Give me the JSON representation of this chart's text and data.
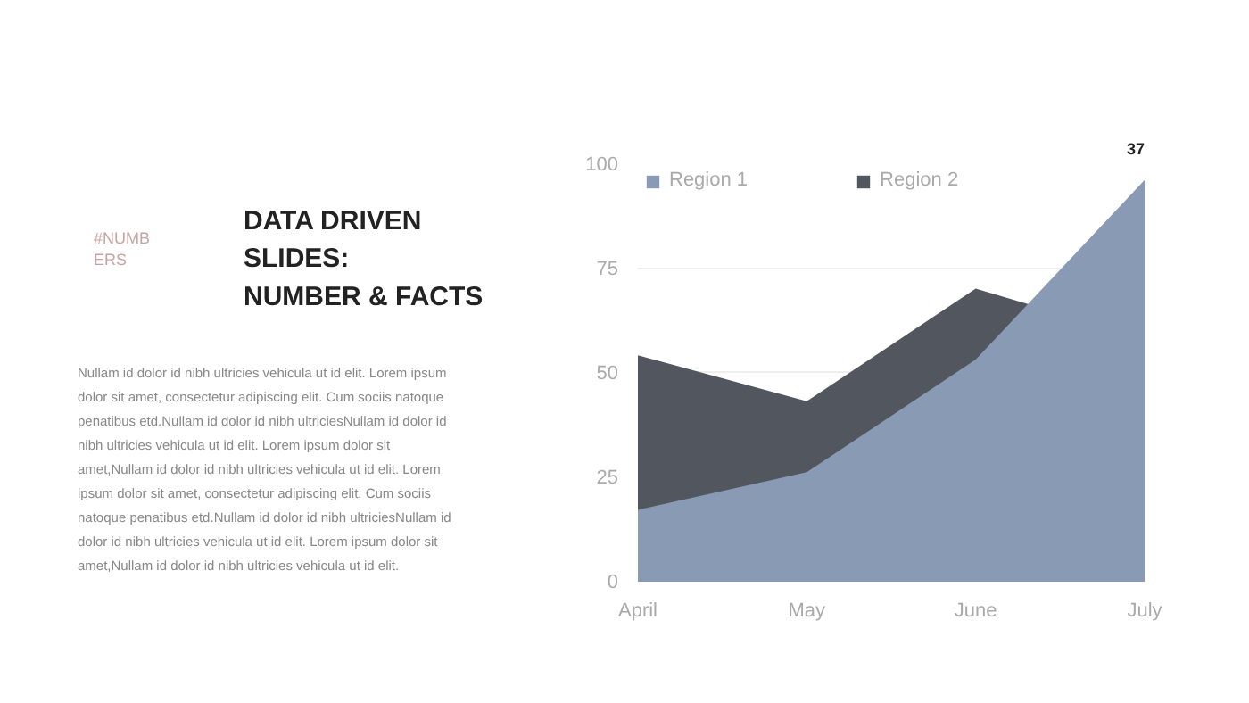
{
  "chart_data": {
    "type": "area",
    "title": "DATA DRIVEN\nSLIDES:\nNUMBER & FACTS",
    "categories": [
      "April",
      "May",
      "June",
      "July"
    ],
    "series": [
      {
        "name": "Region 2",
        "color": "#52565e",
        "values": [
          54,
          43,
          70,
          58
        ]
      },
      {
        "name": "Region 1",
        "color": "#899bb4",
        "values": [
          17,
          26,
          53,
          96
        ]
      }
    ],
    "ylim": [
      0,
      100
    ],
    "yticks": [
      0,
      25,
      50,
      75,
      100
    ],
    "grid": "y",
    "legend": "top left",
    "annotations": [
      "#NUMBERS",
      "Nullam id dolor id nibh ultricies vehicula ut id elit. Lorem ipsum dolor sit amet, consectetur adipiscing elit. Cum sociis natoque penatibus etd.Nullam id dolor id nibh ultriciesNullam id dolor id nibh ultricies vehicula ut id elit. Lorem ipsum dolor sit amet,Nullam id dolor id nibh ultricies vehicula ut id elit. Lorem ipsum dolor sit amet, consectetur adipiscing elit. Cum sociis natoque penatibus etd.Nullam id dolor id nibh ultriciesNullam id dolor id nibh ultricies vehicula ut id elit. Lorem ipsum dolor sit amet,Nullam id dolor id nibh ultricies vehicula ut id elit.",
      "37"
    ]
  }
}
